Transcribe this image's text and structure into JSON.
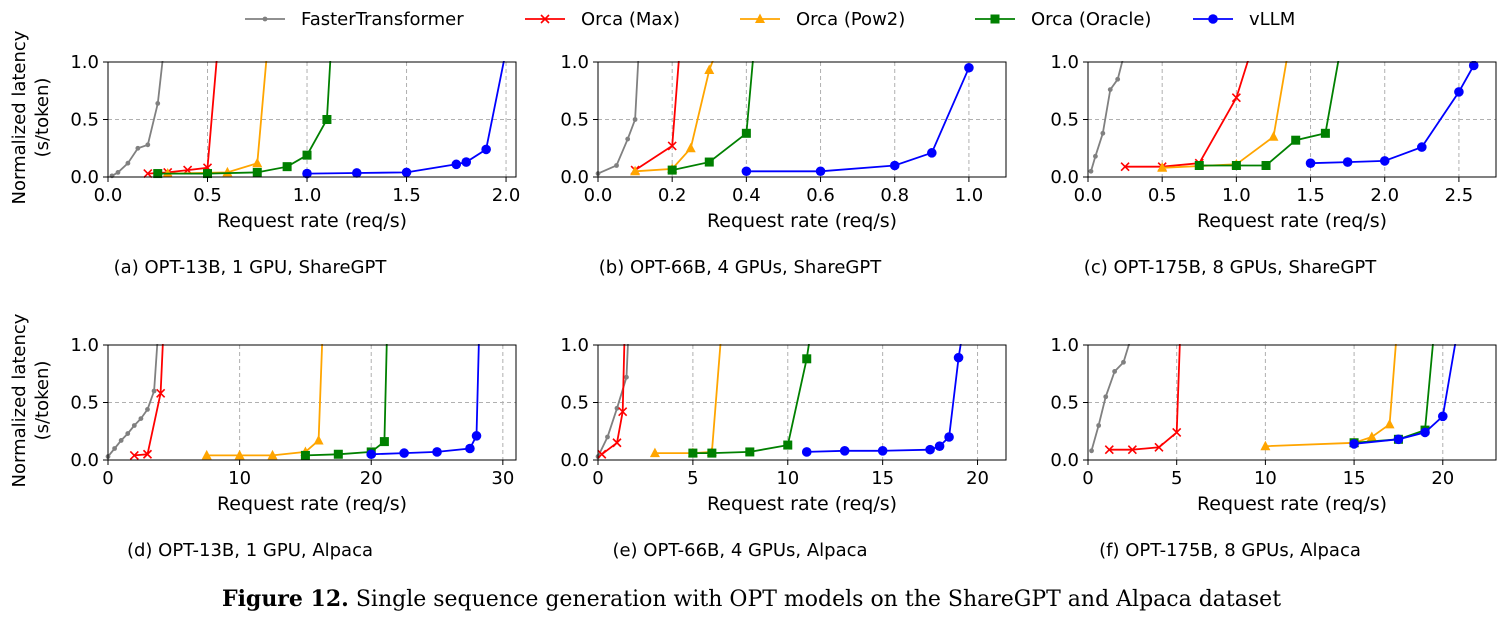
{
  "legend": [
    {
      "name": "FasterTransformer",
      "color": "#808080",
      "marker": "dot"
    },
    {
      "name": "Orca (Max)",
      "color": "#ff0000",
      "marker": "x"
    },
    {
      "name": "Orca (Pow2)",
      "color": "#ffa500",
      "marker": "triangle"
    },
    {
      "name": "Orca (Oracle)",
      "color": "#008000",
      "marker": "square"
    },
    {
      "name": "vLLM",
      "color": "#0000ff",
      "marker": "circle"
    }
  ],
  "figure_caption": {
    "label": "Figure 12.",
    "text": " Single sequence generation with OPT models on the ShareGPT and Alpaca dataset"
  },
  "chart_data": [
    {
      "type": "line",
      "caption": "(a) OPT-13B, 1 GPU, ShareGPT",
      "xlabel": "Request rate (req/s)",
      "ylabel": [
        "Normalized latency",
        "(s/token)"
      ],
      "xlim": [
        0,
        2.05
      ],
      "ylim": [
        0,
        1.0
      ],
      "xticks": [
        0.0,
        0.5,
        1.0,
        1.5,
        2.0
      ],
      "xtick_labels": [
        "0.0",
        "0.5",
        "1.0",
        "1.5",
        "2.0"
      ],
      "yticks": [
        0.0,
        0.5,
        1.0
      ],
      "ytick_labels": [
        "0.0",
        "0.5",
        "1.0"
      ],
      "grid": true,
      "series": [
        {
          "name": "FasterTransformer",
          "x": [
            0.02,
            0.05,
            0.1,
            0.15,
            0.2,
            0.25,
            0.28
          ],
          "y": [
            0.01,
            0.04,
            0.12,
            0.25,
            0.28,
            0.64,
            1.1
          ]
        },
        {
          "name": "Orca (Max)",
          "x": [
            0.2,
            0.3,
            0.4,
            0.5,
            0.55
          ],
          "y": [
            0.03,
            0.04,
            0.06,
            0.08,
            1.1
          ]
        },
        {
          "name": "Orca (Pow2)",
          "x": [
            0.3,
            0.6,
            0.75,
            0.8
          ],
          "y": [
            0.03,
            0.04,
            0.12,
            1.1
          ]
        },
        {
          "name": "Orca (Oracle)",
          "x": [
            0.25,
            0.5,
            0.75,
            0.9,
            1.0,
            1.1,
            1.12
          ],
          "y": [
            0.03,
            0.03,
            0.04,
            0.09,
            0.19,
            0.5,
            1.1
          ]
        },
        {
          "name": "vLLM",
          "x": [
            1.0,
            1.25,
            1.5,
            1.75,
            1.8,
            1.9,
            2.0
          ],
          "y": [
            0.03,
            0.035,
            0.04,
            0.11,
            0.13,
            0.24,
            1.1
          ]
        }
      ]
    },
    {
      "type": "line",
      "caption": "(b) OPT-66B, 4 GPUs, ShareGPT",
      "xlabel": "Request rate (req/s)",
      "ylabel": [
        "",
        ""
      ],
      "xlim": [
        0,
        1.1
      ],
      "ylim": [
        0,
        1.0
      ],
      "xticks": [
        0.0,
        0.2,
        0.4,
        0.6,
        0.8,
        1.0
      ],
      "xtick_labels": [
        "0.0",
        "0.2",
        "0.4",
        "0.6",
        "0.8",
        "1.0"
      ],
      "yticks": [
        0.0,
        0.5,
        1.0
      ],
      "ytick_labels": [
        "0.0",
        "0.5",
        "1.0"
      ],
      "grid": true,
      "series": [
        {
          "name": "FasterTransformer",
          "x": [
            0.0,
            0.05,
            0.08,
            0.1,
            0.11
          ],
          "y": [
            0.03,
            0.1,
            0.33,
            0.5,
            1.1
          ]
        },
        {
          "name": "Orca (Max)",
          "x": [
            0.1,
            0.2,
            0.22
          ],
          "y": [
            0.06,
            0.27,
            1.1
          ]
        },
        {
          "name": "Orca (Pow2)",
          "x": [
            0.1,
            0.2,
            0.25,
            0.3,
            0.32
          ],
          "y": [
            0.05,
            0.07,
            0.25,
            0.93,
            1.1
          ]
        },
        {
          "name": "Orca (Oracle)",
          "x": [
            0.2,
            0.3,
            0.4,
            0.42
          ],
          "y": [
            0.06,
            0.13,
            0.38,
            1.1
          ]
        },
        {
          "name": "vLLM",
          "x": [
            0.4,
            0.6,
            0.8,
            0.9,
            1.0
          ],
          "y": [
            0.05,
            0.05,
            0.1,
            0.21,
            0.95
          ]
        }
      ]
    },
    {
      "type": "line",
      "caption": "(c) OPT-175B, 8 GPUs, ShareGPT",
      "xlabel": "Request rate (req/s)",
      "ylabel": [
        "",
        ""
      ],
      "xlim": [
        0,
        2.75
      ],
      "ylim": [
        0,
        1.0
      ],
      "xticks": [
        0.0,
        0.5,
        1.0,
        1.5,
        2.0,
        2.5
      ],
      "xtick_labels": [
        "0.0",
        "0.5",
        "1.0",
        "1.5",
        "2.0",
        "2.5"
      ],
      "yticks": [
        0.0,
        0.5,
        1.0
      ],
      "ytick_labels": [
        "0.0",
        "0.5",
        "1.0"
      ],
      "grid": true,
      "series": [
        {
          "name": "FasterTransformer",
          "x": [
            0.02,
            0.05,
            0.1,
            0.15,
            0.2,
            0.25
          ],
          "y": [
            0.05,
            0.18,
            0.38,
            0.76,
            0.85,
            1.1
          ]
        },
        {
          "name": "Orca (Max)",
          "x": [
            0.25,
            0.5,
            0.75,
            1.0,
            1.1
          ],
          "y": [
            0.09,
            0.09,
            0.12,
            0.69,
            1.1
          ]
        },
        {
          "name": "Orca (Pow2)",
          "x": [
            0.5,
            1.0,
            1.25,
            1.35
          ],
          "y": [
            0.08,
            0.11,
            0.35,
            1.1
          ]
        },
        {
          "name": "Orca (Oracle)",
          "x": [
            0.75,
            1.0,
            1.2,
            1.4,
            1.6,
            1.7
          ],
          "y": [
            0.1,
            0.1,
            0.1,
            0.32,
            0.38,
            1.1
          ]
        },
        {
          "name": "vLLM",
          "x": [
            1.5,
            1.75,
            2.0,
            2.25,
            2.5,
            2.6
          ],
          "y": [
            0.12,
            0.13,
            0.14,
            0.26,
            0.74,
            0.97
          ]
        }
      ]
    },
    {
      "type": "line",
      "caption": "(d) OPT-13B, 1 GPU, Alpaca",
      "xlabel": "Request rate (req/s)",
      "ylabel": [
        "Normalized latency",
        "(s/token)"
      ],
      "xlim": [
        0,
        31
      ],
      "ylim": [
        0,
        1.0
      ],
      "xticks": [
        0,
        10,
        20,
        30
      ],
      "xtick_labels": [
        "0",
        "10",
        "20",
        "30"
      ],
      "yticks": [
        0.0,
        0.5,
        1.0
      ],
      "ytick_labels": [
        "0.0",
        "0.5",
        "1.0"
      ],
      "grid": true,
      "series": [
        {
          "name": "FasterTransformer",
          "x": [
            0.0,
            0.5,
            1.0,
            1.5,
            2.0,
            2.5,
            3.0,
            3.5,
            3.8
          ],
          "y": [
            0.03,
            0.1,
            0.17,
            0.23,
            0.3,
            0.36,
            0.44,
            0.6,
            1.1
          ]
        },
        {
          "name": "Orca (Max)",
          "x": [
            2.0,
            3.0,
            4.0,
            4.2
          ],
          "y": [
            0.04,
            0.05,
            0.58,
            1.1
          ]
        },
        {
          "name": "Orca (Pow2)",
          "x": [
            7.5,
            10.0,
            12.5,
            15.0,
            16.0,
            16.3
          ],
          "y": [
            0.04,
            0.04,
            0.04,
            0.07,
            0.17,
            1.1
          ]
        },
        {
          "name": "Orca (Oracle)",
          "x": [
            15.0,
            17.5,
            20.0,
            21.0,
            21.2
          ],
          "y": [
            0.04,
            0.05,
            0.07,
            0.16,
            1.1
          ]
        },
        {
          "name": "vLLM",
          "x": [
            20.0,
            22.5,
            25.0,
            27.5,
            28.0,
            28.2
          ],
          "y": [
            0.05,
            0.06,
            0.07,
            0.1,
            0.21,
            1.1
          ]
        }
      ]
    },
    {
      "type": "line",
      "caption": "(e) OPT-66B, 4 GPUs, Alpaca",
      "xlabel": "Request rate (req/s)",
      "ylabel": [
        "",
        ""
      ],
      "xlim": [
        0,
        21.5
      ],
      "ylim": [
        0,
        1.0
      ],
      "xticks": [
        0,
        5,
        10,
        15,
        20
      ],
      "xtick_labels": [
        "0",
        "5",
        "10",
        "15",
        "20"
      ],
      "yticks": [
        0.0,
        0.5,
        1.0
      ],
      "ytick_labels": [
        "0.0",
        "0.5",
        "1.0"
      ],
      "grid": true,
      "series": [
        {
          "name": "FasterTransformer",
          "x": [
            0.0,
            0.5,
            1.0,
            1.5,
            1.6
          ],
          "y": [
            0.03,
            0.2,
            0.45,
            0.72,
            1.1
          ]
        },
        {
          "name": "Orca (Max)",
          "x": [
            0.2,
            1.0,
            1.3,
            1.4
          ],
          "y": [
            0.05,
            0.15,
            0.42,
            1.1
          ]
        },
        {
          "name": "Orca (Pow2)",
          "x": [
            3.0,
            5.0,
            6.0,
            6.5
          ],
          "y": [
            0.06,
            0.06,
            0.07,
            1.1
          ]
        },
        {
          "name": "Orca (Oracle)",
          "x": [
            5.0,
            6.0,
            8.0,
            10.0,
            11.0,
            11.2
          ],
          "y": [
            0.06,
            0.06,
            0.07,
            0.13,
            0.88,
            1.1
          ]
        },
        {
          "name": "vLLM",
          "x": [
            11.0,
            13.0,
            15.0,
            17.5,
            18.0,
            18.5,
            19.0,
            19.2
          ],
          "y": [
            0.07,
            0.08,
            0.08,
            0.09,
            0.12,
            0.2,
            0.89,
            1.1
          ]
        }
      ]
    },
    {
      "type": "line",
      "caption": "(f) OPT-175B, 8 GPUs, Alpaca",
      "xlabel": "Request rate (req/s)",
      "ylabel": [
        "",
        ""
      ],
      "xlim": [
        0,
        23
      ],
      "ylim": [
        0,
        1.0
      ],
      "xticks": [
        0,
        5,
        10,
        15,
        20
      ],
      "xtick_labels": [
        "0",
        "5",
        "10",
        "15",
        "20"
      ],
      "yticks": [
        0.0,
        0.5,
        1.0
      ],
      "ytick_labels": [
        "0.0",
        "0.5",
        "1.0"
      ],
      "grid": true,
      "series": [
        {
          "name": "FasterTransformer",
          "x": [
            0.2,
            0.6,
            1.0,
            1.5,
            2.0,
            2.5,
            3.0
          ],
          "y": [
            0.08,
            0.3,
            0.55,
            0.77,
            0.85,
            1.1,
            1.1
          ]
        },
        {
          "name": "Orca (Max)",
          "x": [
            1.2,
            2.5,
            4.0,
            5.0,
            5.2
          ],
          "y": [
            0.09,
            0.09,
            0.11,
            0.24,
            1.1
          ]
        },
        {
          "name": "Orca (Pow2)",
          "x": [
            10.0,
            15.0,
            16.0,
            17.0,
            17.4
          ],
          "y": [
            0.12,
            0.15,
            0.2,
            0.31,
            1.1
          ]
        },
        {
          "name": "Orca (Oracle)",
          "x": [
            15.0,
            17.5,
            19.0,
            19.5
          ],
          "y": [
            0.15,
            0.18,
            0.26,
            1.1
          ]
        },
        {
          "name": "vLLM",
          "x": [
            15.0,
            17.5,
            19.0,
            20.0,
            20.8
          ],
          "y": [
            0.14,
            0.18,
            0.24,
            0.38,
            1.1
          ]
        }
      ]
    }
  ]
}
